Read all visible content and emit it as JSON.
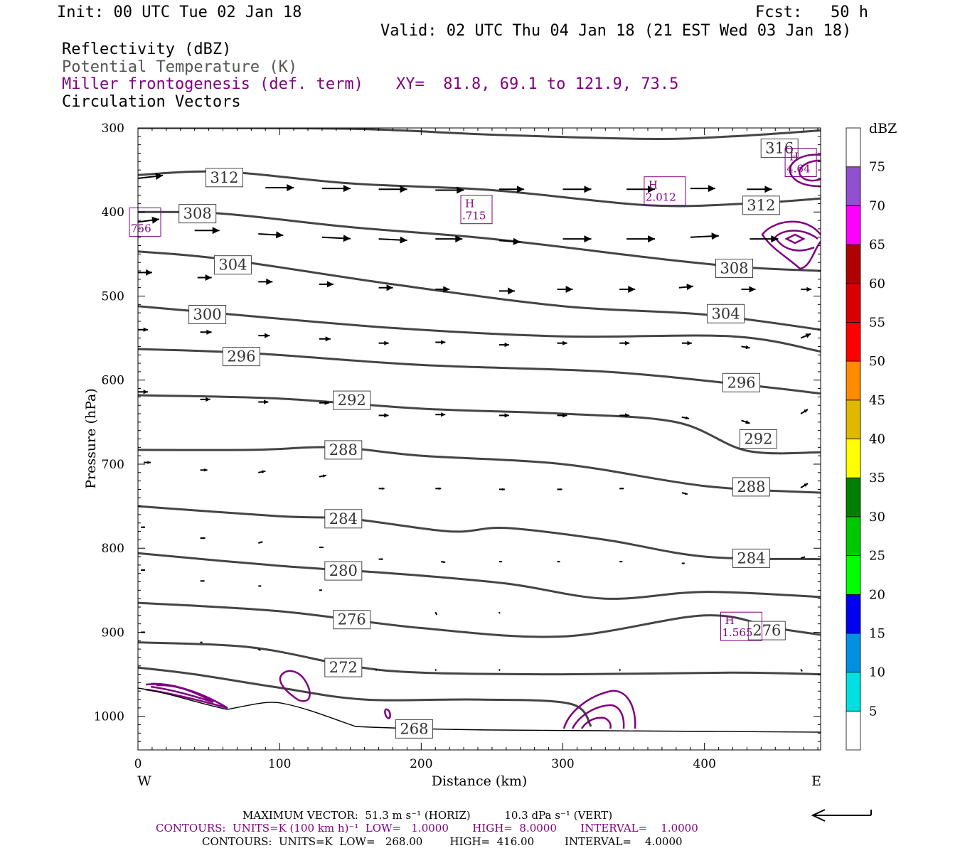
{
  "header": {
    "init": "Init: 00 UTC Tue 02 Jan 18",
    "fcst": "Fcst:   50 h",
    "valid": "Valid: 02 UTC Thu 04 Jan 18 (21 EST Wed 03 Jan 18)",
    "field1": "Reflectivity (dBZ)",
    "field2": "Potential Temperature (K)",
    "field3": "Miller frontogenesis (def. term)",
    "xy": "XY=  81.8, 69.1 to 121.9, 73.5",
    "field4": "Circulation Vectors"
  },
  "colors": {
    "theta": "#444444",
    "fronto": "#800080",
    "vector": "#000000"
  },
  "chart_data": {
    "type": "cross-section",
    "xlabel": "Distance (km)",
    "ylabel": "Pressure (hPa)",
    "x_left_label": "W",
    "x_right_label": "E",
    "xlim": [
      0,
      482
    ],
    "ylim": [
      300,
      1040
    ],
    "xticks": [
      0,
      100,
      200,
      300,
      400
    ],
    "yticks": [
      300,
      400,
      500,
      600,
      700,
      800,
      900,
      1000
    ],
    "theta_contours": [
      {
        "label": "316",
        "points": [
          [
            0,
            300
          ],
          [
            150,
            301
          ],
          [
            250,
            308
          ],
          [
            360,
            313
          ],
          [
            420,
            310
          ],
          [
            482,
            303
          ]
        ],
        "labels_at": [
          [
            453,
            324
          ]
        ]
      },
      {
        "label": "312",
        "points": [
          [
            0,
            356
          ],
          [
            60,
            352
          ],
          [
            150,
            366
          ],
          [
            250,
            374
          ],
          [
            360,
            392
          ],
          [
            430,
            390
          ],
          [
            482,
            384
          ]
        ],
        "labels_at": [
          [
            61,
            359
          ],
          [
            440,
            392
          ]
        ]
      },
      {
        "label": "308",
        "points": [
          [
            0,
            400
          ],
          [
            60,
            402
          ],
          [
            150,
            418
          ],
          [
            250,
            432
          ],
          [
            370,
            456
          ],
          [
            430,
            466
          ],
          [
            482,
            470
          ]
        ],
        "labels_at": [
          [
            42,
            402
          ],
          [
            421,
            467
          ]
        ]
      },
      {
        "label": "304",
        "points": [
          [
            0,
            447
          ],
          [
            60,
            456
          ],
          [
            180,
            486
          ],
          [
            300,
            512
          ],
          [
            400,
            522
          ],
          [
            482,
            540
          ]
        ],
        "labels_at": [
          [
            67,
            463
          ],
          [
            415,
            521
          ]
        ]
      },
      {
        "label": "300",
        "points": [
          [
            0,
            512
          ],
          [
            60,
            521
          ],
          [
            180,
            538
          ],
          [
            300,
            548
          ],
          [
            420,
            548
          ],
          [
            482,
            566
          ]
        ],
        "labels_at": [
          [
            49,
            522
          ]
        ]
      },
      {
        "label": "296",
        "points": [
          [
            0,
            563
          ],
          [
            80,
            568
          ],
          [
            200,
            582
          ],
          [
            330,
            590
          ],
          [
            430,
            606
          ],
          [
            482,
            616
          ]
        ],
        "labels_at": [
          [
            73,
            572
          ],
          [
            426,
            603
          ]
        ]
      },
      {
        "label": "292",
        "points": [
          [
            0,
            618
          ],
          [
            100,
            622
          ],
          [
            200,
            634
          ],
          [
            300,
            640
          ],
          [
            380,
            650
          ],
          [
            430,
            684
          ],
          [
            482,
            686
          ]
        ],
        "labels_at": [
          [
            151,
            624
          ],
          [
            438,
            670
          ]
        ]
      },
      {
        "label": "288",
        "points": [
          [
            0,
            683
          ],
          [
            80,
            683
          ],
          [
            140,
            680
          ],
          [
            200,
            690
          ],
          [
            300,
            700
          ],
          [
            400,
            726
          ],
          [
            482,
            734
          ]
        ],
        "labels_at": [
          [
            145,
            683
          ],
          [
            433,
            727
          ]
        ]
      },
      {
        "label": "284",
        "points": [
          [
            0,
            750
          ],
          [
            100,
            762
          ],
          [
            150,
            765
          ],
          [
            220,
            780
          ],
          [
            260,
            776
          ],
          [
            330,
            790
          ],
          [
            400,
            810
          ],
          [
            482,
            813
          ]
        ],
        "labels_at": [
          [
            145,
            765
          ],
          [
            433,
            812
          ]
        ]
      },
      {
        "label": "280",
        "points": [
          [
            0,
            806
          ],
          [
            100,
            821
          ],
          [
            180,
            830
          ],
          [
            260,
            842
          ],
          [
            330,
            860
          ],
          [
            400,
            852
          ],
          [
            482,
            858
          ]
        ],
        "labels_at": [
          [
            145,
            827
          ]
        ]
      },
      {
        "label": "276",
        "points": [
          [
            0,
            865
          ],
          [
            100,
            875
          ],
          [
            200,
            895
          ],
          [
            300,
            905
          ],
          [
            400,
            880
          ],
          [
            450,
            895
          ],
          [
            482,
            903
          ]
        ],
        "labels_at": [
          [
            151,
            885
          ],
          [
            444,
            898
          ]
        ]
      },
      {
        "label": "272",
        "points": [
          [
            0,
            912
          ],
          [
            80,
            918
          ],
          [
            150,
            940
          ],
          [
            200,
            948
          ],
          [
            300,
            950
          ],
          [
            420,
            948
          ],
          [
            482,
            950
          ]
        ],
        "labels_at": [
          [
            145,
            942
          ]
        ]
      },
      {
        "label": "268",
        "points": [
          [
            0,
            942
          ],
          [
            40,
            950
          ],
          [
            100,
            966
          ],
          [
            160,
            980
          ],
          [
            240,
            980
          ],
          [
            305,
            985
          ],
          [
            320,
            1012
          ]
        ],
        "labels_at": [
          [
            195,
            1015
          ]
        ]
      }
    ],
    "fronto_maxima": [
      {
        "label": "H",
        "value": "4.64",
        "at": [
          468,
          341
        ]
      },
      {
        "label": "H",
        "value": "2.012",
        "at": [
          372,
          375
        ]
      },
      {
        "label": "H",
        "value": ".715",
        "at": [
          239,
          397
        ]
      },
      {
        "label": "",
        "value": "756",
        "at": [
          5,
          412
        ]
      },
      {
        "label": "H",
        "value": "1.565",
        "at": [
          426,
          893
        ]
      }
    ],
    "fronto_units": "K (100 km h)⁻¹",
    "theta_units": "K",
    "colorbar": {
      "title": "dBZ",
      "levels": [
        5,
        10,
        15,
        20,
        25,
        30,
        35,
        40,
        45,
        50,
        55,
        60,
        65,
        70,
        75
      ],
      "colors": [
        "#00e0e0",
        "#0090e0",
        "#0000f0",
        "#00ff00",
        "#00c800",
        "#008000",
        "#ffff00",
        "#e0b800",
        "#ff8c00",
        "#ff0000",
        "#d80000",
        "#b00000",
        "#ff00ff",
        "#9050d0",
        "#ffffff"
      ]
    },
    "vectors": [
      {
        "x": 0,
        "p": 360,
        "u": 35,
        "w": -4
      },
      {
        "x": 50,
        "p": 365,
        "u": 40,
        "w": 0
      },
      {
        "x": 90,
        "p": 371,
        "u": 40,
        "w": 0
      },
      {
        "x": 130,
        "p": 372,
        "u": 40,
        "w": 0
      },
      {
        "x": 170,
        "p": 373,
        "u": 40,
        "w": 0
      },
      {
        "x": 210,
        "p": 374,
        "u": 40,
        "w": 0
      },
      {
        "x": 255,
        "p": 373,
        "u": 35,
        "w": 0
      },
      {
        "x": 300,
        "p": 373,
        "u": 40,
        "w": 0
      },
      {
        "x": 345,
        "p": 373,
        "u": 40,
        "w": 0
      },
      {
        "x": 390,
        "p": 372,
        "u": 35,
        "w": 0
      },
      {
        "x": 430,
        "p": 373,
        "u": 35,
        "w": 0
      },
      {
        "x": 0,
        "p": 412,
        "u": 30,
        "w": -4
      },
      {
        "x": 40,
        "p": 422,
        "u": 35,
        "w": 0
      },
      {
        "x": 85,
        "p": 426,
        "u": 35,
        "w": 2
      },
      {
        "x": 130,
        "p": 430,
        "u": 40,
        "w": 2
      },
      {
        "x": 170,
        "p": 432,
        "u": 40,
        "w": 2
      },
      {
        "x": 210,
        "p": 432,
        "u": 38,
        "w": 0
      },
      {
        "x": 255,
        "p": 434,
        "u": 30,
        "w": 2
      },
      {
        "x": 300,
        "p": 432,
        "u": 40,
        "w": 0
      },
      {
        "x": 345,
        "p": 432,
        "u": 40,
        "w": 0
      },
      {
        "x": 390,
        "p": 430,
        "u": 40,
        "w": -2
      },
      {
        "x": 432,
        "p": 432,
        "u": 40,
        "w": 0
      },
      {
        "x": 0,
        "p": 472,
        "u": 20,
        "w": 0
      },
      {
        "x": 42,
        "p": 478,
        "u": 20,
        "w": 0
      },
      {
        "x": 85,
        "p": 483,
        "u": 20,
        "w": 0
      },
      {
        "x": 128,
        "p": 486,
        "u": 20,
        "w": 0
      },
      {
        "x": 170,
        "p": 490,
        "u": 20,
        "w": 0
      },
      {
        "x": 210,
        "p": 492,
        "u": 20,
        "w": 0
      },
      {
        "x": 255,
        "p": 494,
        "u": 22,
        "w": 0
      },
      {
        "x": 296,
        "p": 492,
        "u": 22,
        "w": 0
      },
      {
        "x": 340,
        "p": 492,
        "u": 22,
        "w": 0
      },
      {
        "x": 382,
        "p": 490,
        "u": 20,
        "w": -2
      },
      {
        "x": 426,
        "p": 492,
        "u": 20,
        "w": 0
      },
      {
        "x": 468,
        "p": 492,
        "u": 15,
        "w": 0
      },
      {
        "x": 0,
        "p": 540,
        "u": 14,
        "w": 0
      },
      {
        "x": 44,
        "p": 543,
        "u": 16,
        "w": 0
      },
      {
        "x": 85,
        "p": 547,
        "u": 16,
        "w": 0
      },
      {
        "x": 128,
        "p": 551,
        "u": 16,
        "w": 0
      },
      {
        "x": 170,
        "p": 556,
        "u": 14,
        "w": 0
      },
      {
        "x": 210,
        "p": 555,
        "u": 14,
        "w": 0
      },
      {
        "x": 255,
        "p": 558,
        "u": 14,
        "w": 0
      },
      {
        "x": 296,
        "p": 556,
        "u": 14,
        "w": 0
      },
      {
        "x": 340,
        "p": 556,
        "u": 14,
        "w": 0
      },
      {
        "x": 384,
        "p": 556,
        "u": 14,
        "w": 0
      },
      {
        "x": 426,
        "p": 560,
        "u": 12,
        "w": 2
      },
      {
        "x": 468,
        "p": 550,
        "u": 14,
        "w": -6
      },
      {
        "x": 0,
        "p": 614,
        "u": 14,
        "w": 0
      },
      {
        "x": 44,
        "p": 623,
        "u": 14,
        "w": 0
      },
      {
        "x": 85,
        "p": 626,
        "u": 14,
        "w": 0
      },
      {
        "x": 128,
        "p": 627,
        "u": 14,
        "w": 0
      },
      {
        "x": 170,
        "p": 642,
        "u": 14,
        "w": 0
      },
      {
        "x": 210,
        "p": 641,
        "u": 14,
        "w": 0
      },
      {
        "x": 255,
        "p": 642,
        "u": 14,
        "w": 0
      },
      {
        "x": 296,
        "p": 642,
        "u": 14,
        "w": 0
      },
      {
        "x": 340,
        "p": 642,
        "u": 14,
        "w": 0
      },
      {
        "x": 384,
        "p": 644,
        "u": 10,
        "w": 2
      },
      {
        "x": 426,
        "p": 648,
        "u": 12,
        "w": 4
      },
      {
        "x": 468,
        "p": 640,
        "u": 10,
        "w": -6
      },
      {
        "x": 4,
        "p": 698,
        "u": 10,
        "w": 0
      },
      {
        "x": 44,
        "p": 707,
        "u": 10,
        "w": 0
      },
      {
        "x": 85,
        "p": 710,
        "u": 10,
        "w": -2
      },
      {
        "x": 128,
        "p": 715,
        "u": 10,
        "w": -2
      },
      {
        "x": 170,
        "p": 729,
        "u": 8,
        "w": 0
      },
      {
        "x": 210,
        "p": 729,
        "u": 8,
        "w": 0
      },
      {
        "x": 255,
        "p": 730,
        "u": 8,
        "w": 0
      },
      {
        "x": 296,
        "p": 730,
        "u": 7,
        "w": 0
      },
      {
        "x": 340,
        "p": 729,
        "u": 6,
        "w": 0
      },
      {
        "x": 384,
        "p": 734,
        "u": 8,
        "w": 2
      },
      {
        "x": 468,
        "p": 728,
        "u": 10,
        "w": -6
      },
      {
        "x": 2,
        "p": 775,
        "u": 6,
        "w": 0
      },
      {
        "x": 44,
        "p": 788,
        "u": 7,
        "w": 0
      },
      {
        "x": 85,
        "p": 794,
        "u": 6,
        "w": -2
      },
      {
        "x": 128,
        "p": 799,
        "u": 6,
        "w": 0
      },
      {
        "x": 170,
        "p": 813,
        "u": 6,
        "w": 0
      },
      {
        "x": 214,
        "p": 816,
        "u": 6,
        "w": 1
      },
      {
        "x": 255,
        "p": 816,
        "u": 4,
        "w": 0
      },
      {
        "x": 296,
        "p": 816,
        "u": 4,
        "w": 0
      },
      {
        "x": 340,
        "p": 816,
        "u": 4,
        "w": 0
      },
      {
        "x": 384,
        "p": 818,
        "u": 4,
        "w": 0
      },
      {
        "x": 426,
        "p": 816,
        "u": 4,
        "w": 0
      },
      {
        "x": 468,
        "p": 812,
        "u": 6,
        "w": -2
      },
      {
        "x": 2,
        "p": 826,
        "u": 6,
        "w": 0
      },
      {
        "x": 44,
        "p": 839,
        "u": 6,
        "w": 0
      },
      {
        "x": 85,
        "p": 845,
        "u": 4,
        "w": 0
      },
      {
        "x": 128,
        "p": 850,
        "u": 4,
        "w": 0
      },
      {
        "x": 210,
        "p": 876,
        "u": 2,
        "w": 4
      },
      {
        "x": 255,
        "p": 876,
        "u": 1,
        "w": 2
      },
      {
        "x": 2,
        "p": 900,
        "u": 6,
        "w": 0
      },
      {
        "x": 44,
        "p": 912,
        "u": 3,
        "w": 0
      },
      {
        "x": 85,
        "p": 920,
        "u": 3,
        "w": 2
      },
      {
        "x": 168,
        "p": 944,
        "u": 1,
        "w": 2
      },
      {
        "x": 210,
        "p": 944,
        "u": 1,
        "w": 2
      },
      {
        "x": 255,
        "p": 944,
        "u": 1,
        "w": 2
      },
      {
        "x": 340,
        "p": 944,
        "u": 1,
        "w": 2
      },
      {
        "x": 468,
        "p": 944,
        "u": 2,
        "w": 3
      }
    ]
  },
  "footer": {
    "max_vector": "MAXIMUM VECTOR:  51.3 m s⁻¹ (HORIZ)          10.3 dPa s⁻¹ (VERT)",
    "contours1": "CONTOURS:  UNITS=K (100 km h)⁻¹  LOW=   1.0000       HIGH=  8.0000       INTERVAL=    1.0000",
    "contours2": "CONTOURS:  UNITS=K  LOW=   268.00        HIGH=  416.00         INTERVAL=    4.0000"
  }
}
